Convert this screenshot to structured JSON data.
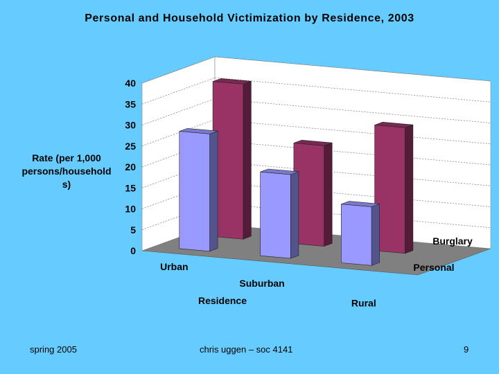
{
  "slide": {
    "title": "Personal and Household Victimization by Residence, 2003",
    "footer_left": "spring 2005",
    "footer_center": "chris uggen – soc 4141",
    "footer_right": "9"
  },
  "colors": {
    "background": "#66CCFF",
    "personal": "#9999FF",
    "burglary": "#993366",
    "floor": "#808080"
  },
  "chart_data": {
    "type": "bar",
    "subtype": "3d-clustered-column",
    "categories": [
      "Urban",
      "Suburban",
      "Rural"
    ],
    "series": [
      {
        "name": "Personal",
        "values": [
          28,
          20,
          14
        ]
      },
      {
        "name": "Burglary",
        "values": [
          37,
          24,
          30
        ]
      }
    ],
    "xlabel": "Residence",
    "ylabel": "Rate (per 1,000 persons/household s)",
    "ylabel_lines": [
      "Rate (per 1,000",
      "persons/household",
      "s)"
    ],
    "yticks": [
      0,
      5,
      10,
      15,
      20,
      25,
      30,
      35,
      40
    ],
    "ylim": [
      0,
      40
    ],
    "grid": true,
    "legend": "series labels on depth axis"
  }
}
